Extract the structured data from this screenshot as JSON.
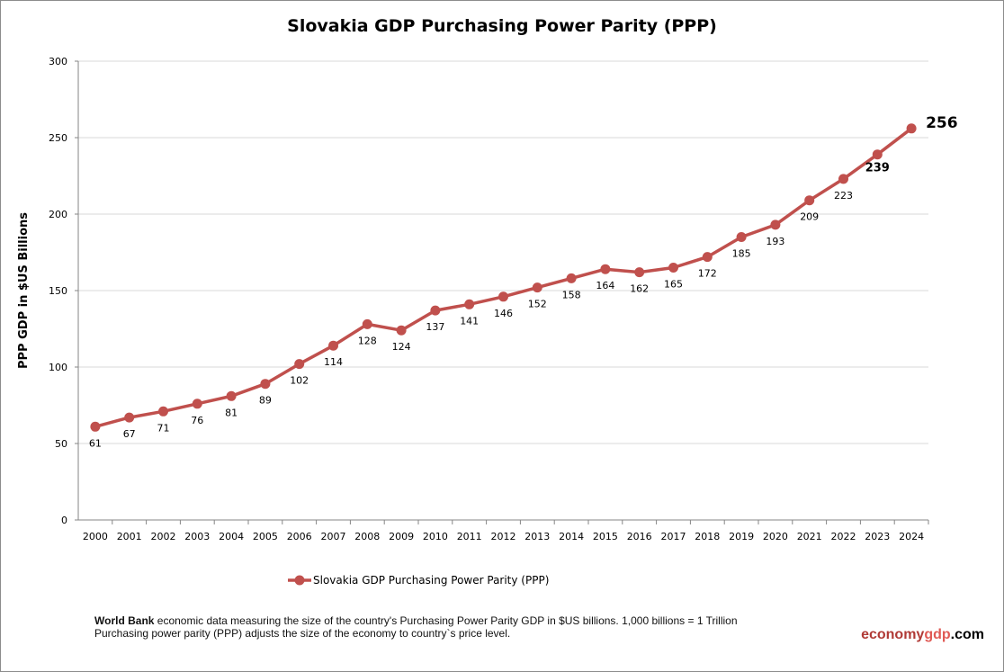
{
  "chart_data": {
    "type": "line",
    "title": "Slovakia GDP Purchasing Power Parity (PPP)",
    "ylabel": "PPP GDP in $US Billions",
    "xlabel": "",
    "ylim": [
      0,
      300
    ],
    "yticks": [
      0,
      50,
      100,
      150,
      200,
      250,
      300
    ],
    "grid": true,
    "legend_position": "bottom",
    "categories": [
      "2000",
      "2001",
      "2002",
      "2003",
      "2004",
      "2005",
      "2006",
      "2007",
      "2008",
      "2009",
      "2010",
      "2011",
      "2012",
      "2013",
      "2014",
      "2015",
      "2016",
      "2017",
      "2018",
      "2019",
      "2020",
      "2021",
      "2022",
      "2023",
      "2024"
    ],
    "series": [
      {
        "name": "Slovakia GDP Purchasing Power Parity (PPP)",
        "color": "#C0504D",
        "values": [
          61,
          67,
          71,
          76,
          81,
          89,
          102,
          114,
          128,
          124,
          137,
          141,
          146,
          152,
          158,
          164,
          162,
          165,
          172,
          185,
          193,
          209,
          223,
          239,
          256
        ]
      }
    ]
  },
  "footer": {
    "source_bold": "World Bank",
    "line1": " economic data  measuring the size of the country's Purchasing Power Parity GDP in $US billions. 1,000 billions = 1 Trillion",
    "line2": "Purchasing power parity (PPP) adjusts the size of the economy to country`s price level."
  },
  "brand": {
    "part1": "economy",
    "part2": "gdp",
    "part3": ".com",
    "color1": "#B03A36",
    "color2": "#E05A55"
  }
}
